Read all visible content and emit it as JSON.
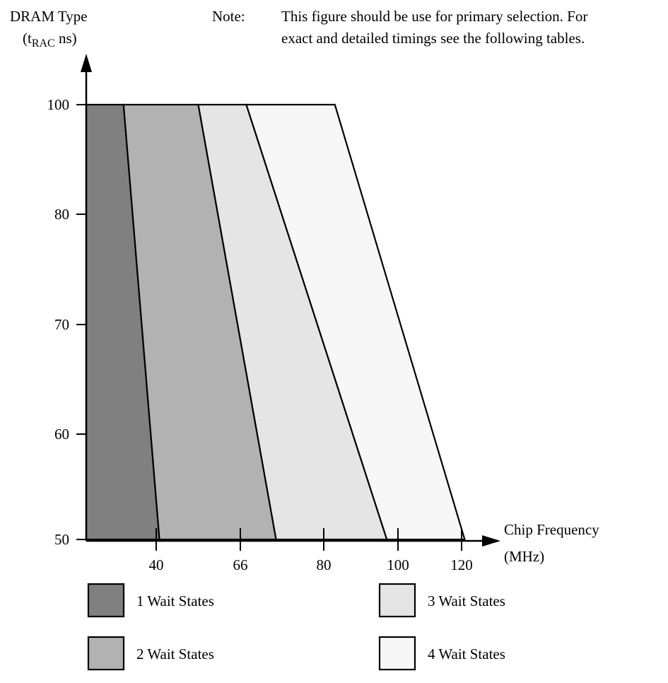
{
  "chart_data": {
    "type": "area",
    "ylabel": {
      "line1": "DRAM Type",
      "line2_prefix": "(t",
      "line2_sub": "RAC",
      "line2_suffix": " ns)"
    },
    "xlabel": {
      "line1": "Chip Frequency",
      "line2": "(MHz)"
    },
    "note": {
      "label": "Note:",
      "line1": "This figure should be use for primary selection. For",
      "line2": "exact and detailed timings see the following tables."
    },
    "y_ticks": [
      {
        "label": "100",
        "pos": 100
      },
      {
        "label": "80",
        "pos": 80
      },
      {
        "label": "70",
        "pos": 70
      },
      {
        "label": "60",
        "pos": 60
      },
      {
        "label": "50",
        "pos": 50
      }
    ],
    "x_ticks": [
      {
        "label": "40",
        "pos": 40
      },
      {
        "label": "66",
        "pos": 66
      },
      {
        "label": "80",
        "pos": 80
      },
      {
        "label": "100",
        "pos": 100
      },
      {
        "label": "120",
        "pos": 120
      }
    ],
    "regions": [
      {
        "name": "1 Wait States",
        "color": "#808080",
        "left_top": 25,
        "left_bottom": 25,
        "right_top": 33,
        "right_bottom": 41
      },
      {
        "name": "2 Wait States",
        "color": "#b2b2b2",
        "left_top": 33,
        "left_bottom": 41,
        "right_top": 53,
        "right_bottom": 72
      },
      {
        "name": "3 Wait States",
        "color": "#e5e5e5",
        "left_top": 53,
        "left_bottom": 72,
        "right_top": 67,
        "right_bottom": 97
      },
      {
        "name": "4 Wait States",
        "color": "#f7f7f7",
        "left_top": 67,
        "left_bottom": 97,
        "right_top": 83,
        "right_bottom": 121
      }
    ]
  }
}
